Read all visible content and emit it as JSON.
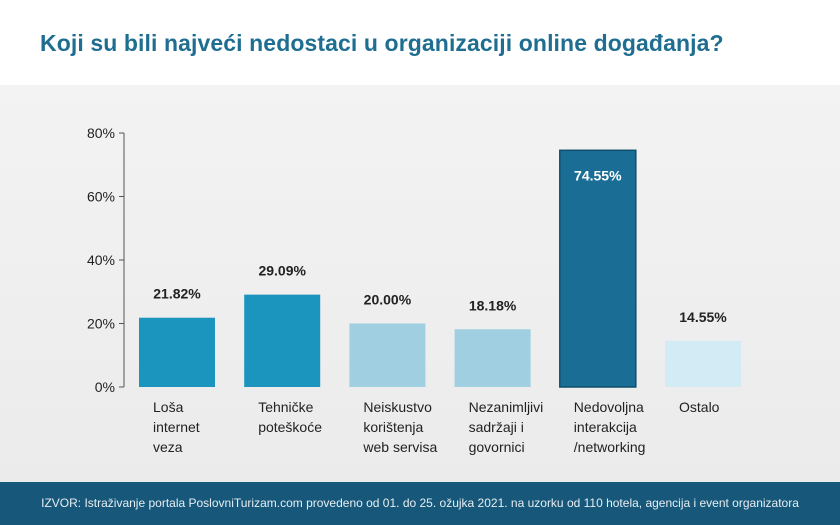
{
  "title": "Koji su bili najveći nedostaci u organizaciji online događanja?",
  "source": "IZVOR: Istraživanje portala PoslovniTurizam.com provedeno od 01. do 25. ožujka 2021. na uzorku od 110 hotela, agencija i event organizatora",
  "chart_data": {
    "type": "bar",
    "categories": [
      [
        "Loša",
        "internet",
        "veza"
      ],
      [
        "Tehničke",
        "poteškoće"
      ],
      [
        "Neiskustvo",
        "korištenja",
        "web servisa"
      ],
      [
        "Nezanimljivi",
        "sadržaji i",
        "govornici"
      ],
      [
        "Nedovoljna",
        "interakcija",
        "/networking"
      ],
      [
        "Ostalo"
      ]
    ],
    "values": [
      21.82,
      29.09,
      20.0,
      18.18,
      74.55,
      14.55
    ],
    "value_labels": [
      "21.82%",
      "29.09%",
      "20.00%",
      "18.18%",
      "74.55%",
      "14.55%"
    ],
    "colors": [
      "#1b95bd",
      "#1b95bd",
      "#9fcfe1",
      "#9fcfe1",
      "#1a6e96",
      "#d3ebf5"
    ],
    "yticks": [
      "0%",
      "20%",
      "40%",
      "60%",
      "80%"
    ],
    "ytick_values": [
      0,
      20,
      40,
      60,
      80
    ],
    "ylim": [
      0,
      80
    ],
    "grid": false
  }
}
